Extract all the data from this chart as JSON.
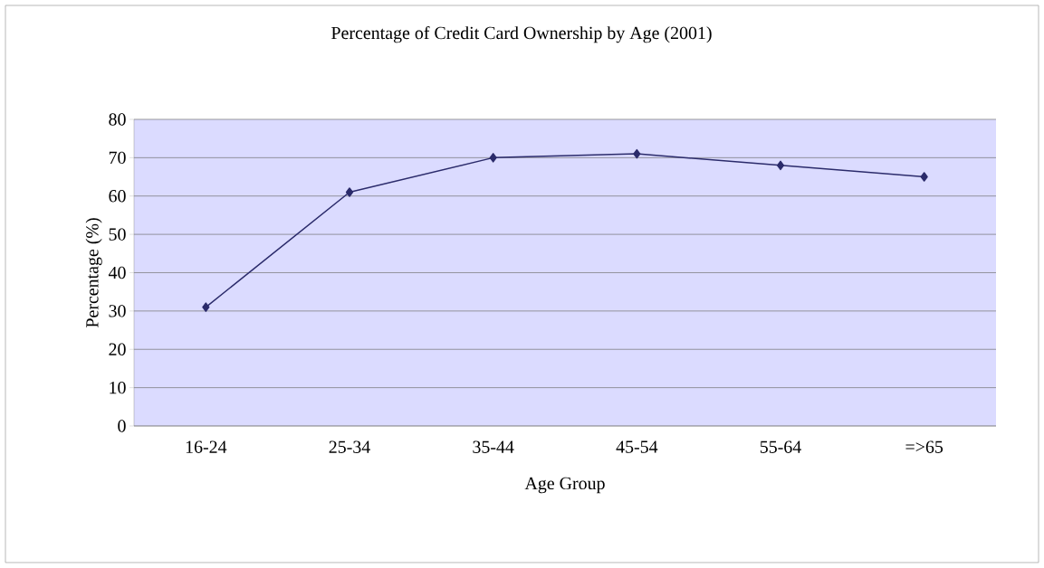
{
  "chart_data": {
    "type": "line",
    "title": "Percentage of Credit Card Ownership by Age (2001)",
    "xlabel": "Age Group",
    "ylabel": "Percentage (%)",
    "categories": [
      "16-24",
      "25-34",
      "35-44",
      "45-54",
      "55-64",
      "=>65"
    ],
    "series": [
      {
        "color": "#2b2b6b",
        "values": [
          31,
          61,
          70,
          71,
          68,
          65
        ]
      }
    ],
    "ylim": [
      0,
      80
    ],
    "yticks": [
      0,
      10,
      20,
      30,
      40,
      50,
      60,
      70,
      80
    ],
    "grid": "y",
    "marker": "diamond",
    "line_style": "solid"
  }
}
